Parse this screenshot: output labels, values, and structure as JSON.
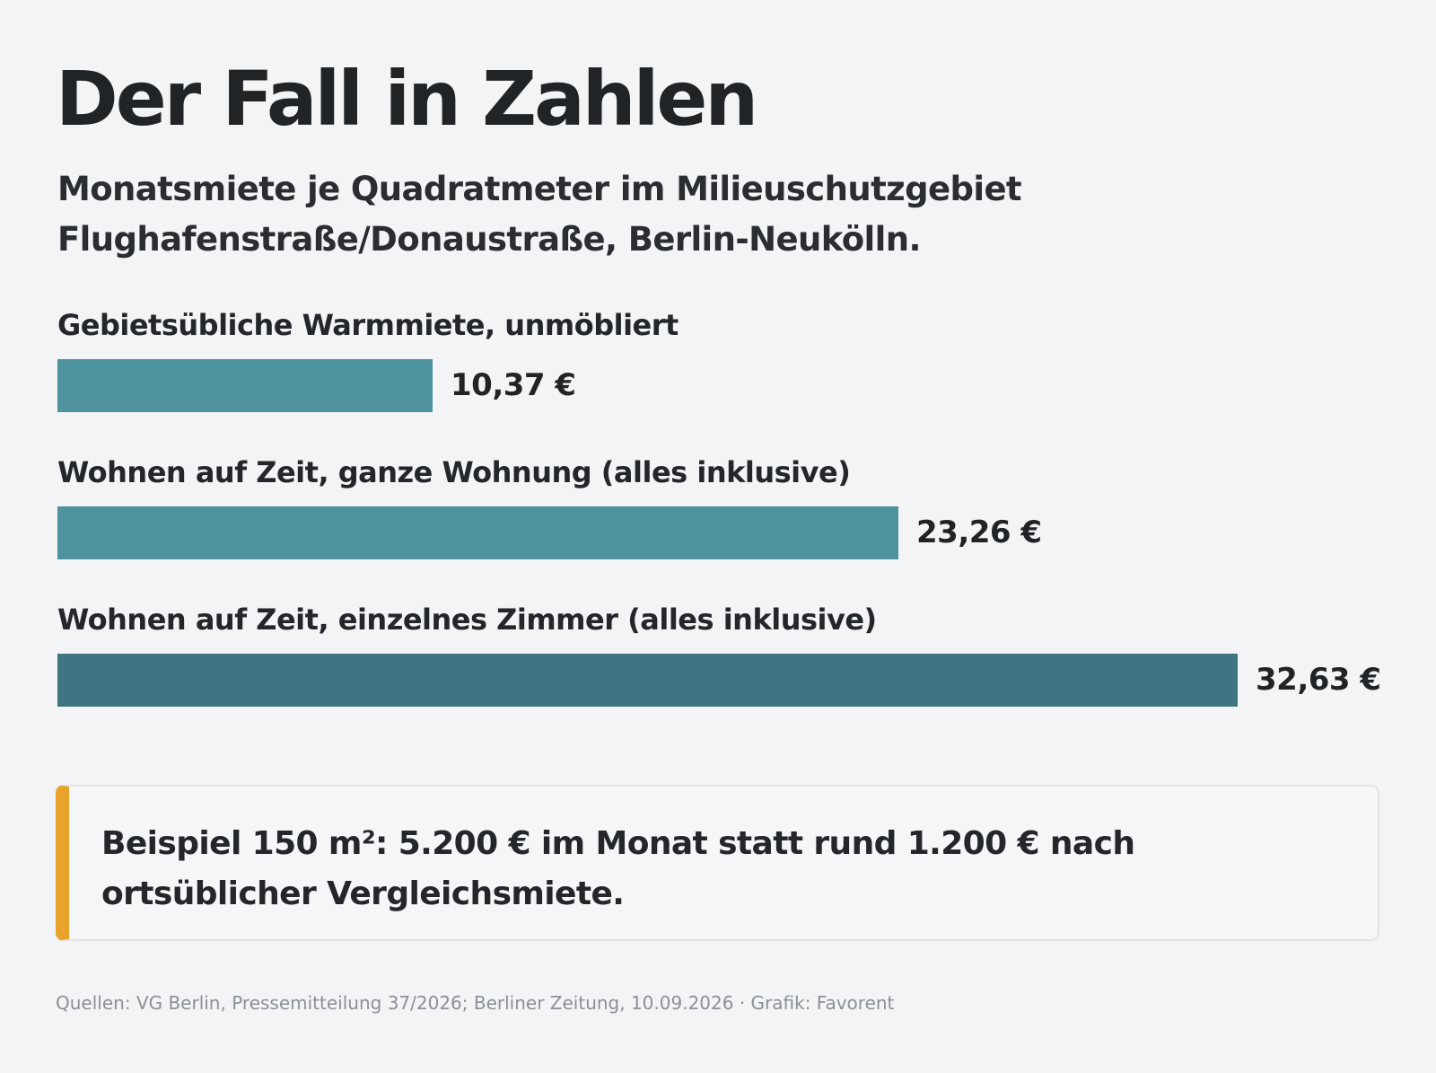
{
  "chart_data": {
    "type": "bar",
    "orientation": "horizontal",
    "title": "Der Fall in Zahlen",
    "subtitle": "Monatsmiete je Quadratmeter im Milieuschutzgebiet Flughafenstraße/Donaustraße, Berlin-Neukölln.",
    "categories": [
      "Gebietsübliche Warmmiete, unmöbliert",
      "Wohnen auf Zeit, ganze Wohnung (alles inklusive)",
      "Wohnen auf Zeit, einzelnes Zimmer (alles inklusive)"
    ],
    "values": [
      10.37,
      23.26,
      32.63
    ],
    "value_labels": [
      "10,37 €",
      "23,26 €",
      "32,63 €"
    ],
    "xlim": [
      0,
      32.63
    ],
    "grid": false,
    "legend": "none"
  },
  "colors": {
    "bar": "#4e929d",
    "bar_highlight": "#3f7582",
    "accent": "#e9a22c",
    "background": "#f3f4f6"
  },
  "callout": {
    "text": "Beispiel 150 m²: 5.200 € im Monat statt rund 1.200 € nach ortsüblicher Vergleichsmiete."
  },
  "footer": {
    "source": "Quellen: VG Berlin, Pressemitteilung 37/2026; Berliner Zeitung, 10.09.2026 · Grafik: Favorent"
  }
}
